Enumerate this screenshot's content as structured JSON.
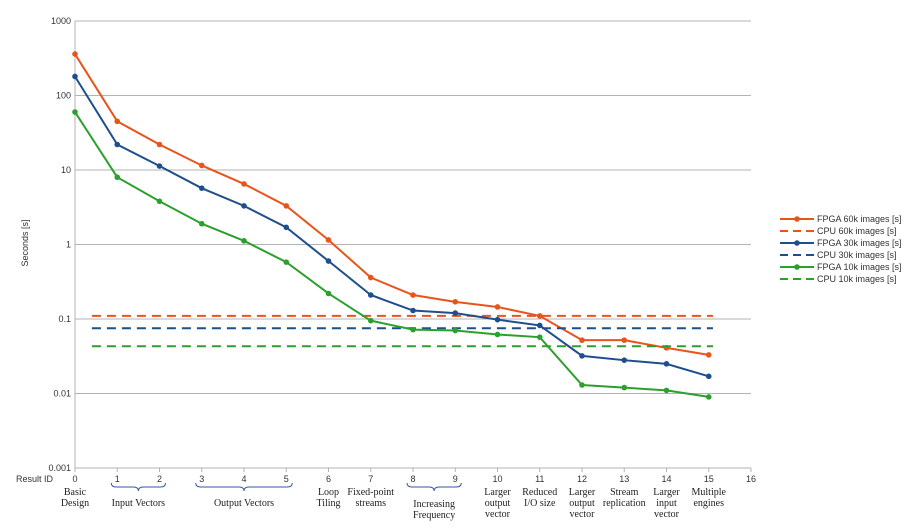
{
  "chart_data": {
    "type": "line",
    "ylabel": "Seconds [s]",
    "xlabel": "Result ID",
    "yscale": "log",
    "ylim": [
      0.001,
      1000
    ],
    "xlim": [
      0,
      16
    ],
    "grid": "horizontal",
    "legend_position": "right",
    "y_ticks": [
      "0.001",
      "0.01",
      "0.1",
      "1",
      "10",
      "100",
      "1000"
    ],
    "x_ticks": [
      "0",
      "1",
      "2",
      "3",
      "4",
      "5",
      "6",
      "7",
      "8",
      "9",
      "10",
      "11",
      "12",
      "13",
      "14",
      "15",
      "16"
    ],
    "x": [
      0,
      1,
      2,
      3,
      4,
      5,
      6,
      7,
      8,
      9,
      10,
      11,
      12,
      13,
      14,
      15
    ],
    "series": [
      {
        "name": "FPGA 60k images [s]",
        "color": "#e8541c",
        "style": "solid-marker",
        "values": [
          360,
          45,
          22,
          11.5,
          6.5,
          3.3,
          1.15,
          0.36,
          0.21,
          0.17,
          0.145,
          0.11,
          0.052,
          0.052,
          0.041,
          0.033
        ]
      },
      {
        "name": "CPU 60k images [s]",
        "color": "#e8541c",
        "style": "dashed",
        "value": 0.11
      },
      {
        "name": "FPGA 30k images [s]",
        "color": "#1f4e8c",
        "style": "solid-marker",
        "values": [
          180,
          22,
          11.3,
          5.7,
          3.3,
          1.7,
          0.6,
          0.21,
          0.13,
          0.12,
          0.098,
          0.082,
          0.032,
          0.028,
          0.025,
          0.017
        ]
      },
      {
        "name": "CPU 30k images [s]",
        "color": "#1f4e8c",
        "style": "dashed",
        "value": 0.075
      },
      {
        "name": "FPGA 10k images [s]",
        "color": "#2ca02c",
        "style": "solid-marker",
        "values": [
          60,
          8,
          3.8,
          1.9,
          1.12,
          0.58,
          0.22,
          0.095,
          0.072,
          0.07,
          0.062,
          0.057,
          0.013,
          0.012,
          0.011,
          0.009
        ]
      },
      {
        "name": "CPU 10k images [s]",
        "color": "#2ca02c",
        "style": "dashed",
        "value": 0.043
      }
    ],
    "annotations": [
      {
        "lines": [
          "Basic",
          "Design"
        ],
        "at": 0
      },
      {
        "lines": [
          "Input Vectors"
        ],
        "span": [
          1,
          2
        ]
      },
      {
        "lines": [
          "Output Vectors"
        ],
        "span": [
          3,
          5
        ]
      },
      {
        "lines": [
          "Loop",
          "Tiling"
        ],
        "at": 6
      },
      {
        "lines": [
          "Fixed-point",
          "streams"
        ],
        "at": 7
      },
      {
        "lines": [
          "Increasing",
          "Frequency"
        ],
        "span": [
          8,
          9
        ]
      },
      {
        "lines": [
          "Larger",
          "output",
          "vector"
        ],
        "at": 10
      },
      {
        "lines": [
          "Reduced",
          "I/O size"
        ],
        "at": 11
      },
      {
        "lines": [
          "Larger",
          "output",
          "vector"
        ],
        "at": 12
      },
      {
        "lines": [
          "Stream",
          "replication"
        ],
        "at": 13
      },
      {
        "lines": [
          "Larger",
          "input",
          "vector"
        ],
        "at": 14
      },
      {
        "lines": [
          "Multiple",
          "engines"
        ],
        "at": 15
      }
    ]
  }
}
